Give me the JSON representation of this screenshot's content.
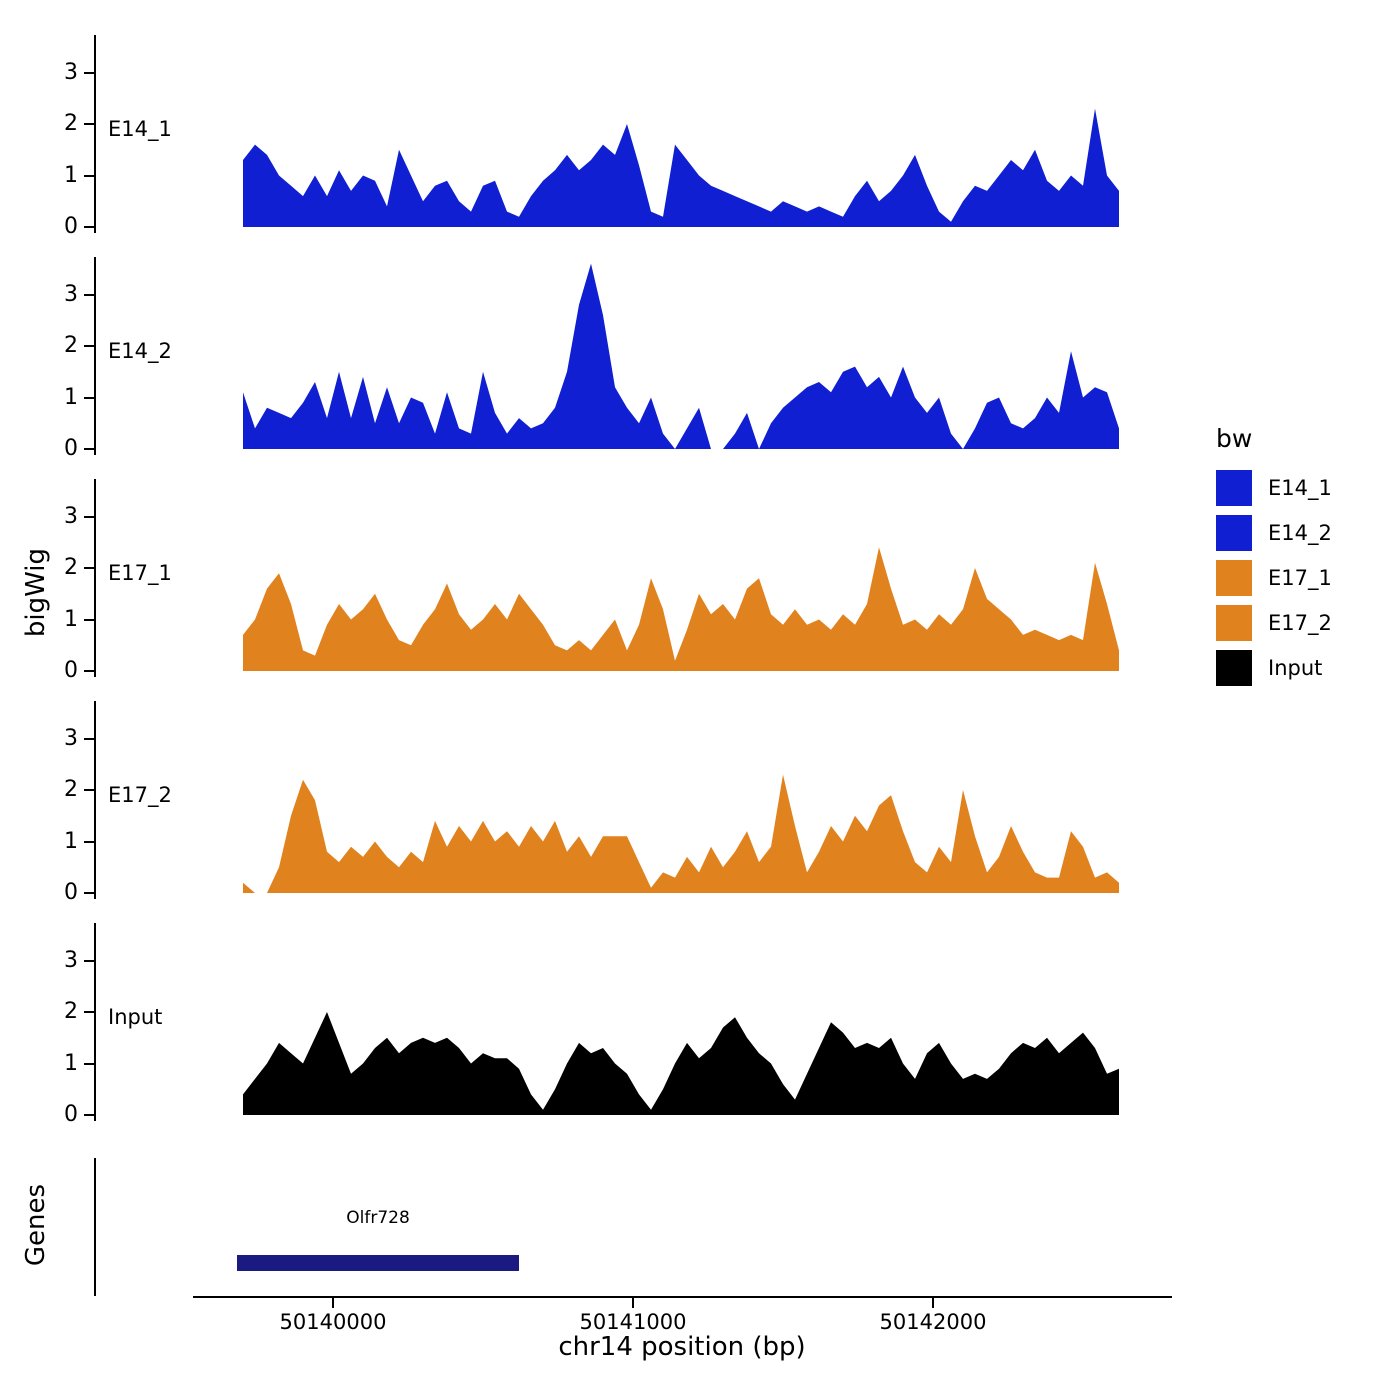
{
  "axes": {
    "y_title": "bigWig",
    "x_title": "chr14 position (bp)"
  },
  "genes": {
    "axis_title": "Genes",
    "gene": {
      "name": "Olfr728",
      "start": 50139680,
      "end": 50140620,
      "color": "#1A1A80"
    }
  },
  "legend": {
    "title": "bw",
    "entries": [
      {
        "label": "E14_1",
        "color": "#0F1FD1"
      },
      {
        "label": "E14_2",
        "color": "#0F1FD1"
      },
      {
        "label": "E17_1",
        "color": "#E0821E"
      },
      {
        "label": "E17_2",
        "color": "#E0821E"
      },
      {
        "label": "Input",
        "color": "#000000"
      }
    ]
  },
  "chart_data": {
    "type": "area",
    "title": "",
    "xlabel": "chr14 position (bp)",
    "ylabel": "bigWig",
    "x_start": 50139700,
    "x_step": 40,
    "x_end": 50142620,
    "x_ticks": [
      50140000,
      50141000,
      50142000
    ],
    "y_ticks": [
      0,
      1,
      2,
      3
    ],
    "ylim": [
      0,
      3.7
    ],
    "grid": false,
    "legend_position": "right",
    "tracks": [
      {
        "name": "E14_1",
        "color": "#0F1FD1",
        "values": [
          1.3,
          1.6,
          1.4,
          1.0,
          0.8,
          0.6,
          1.0,
          0.6,
          1.1,
          0.7,
          1.0,
          0.9,
          0.4,
          1.5,
          1.0,
          0.5,
          0.8,
          0.9,
          0.5,
          0.3,
          0.8,
          0.9,
          0.3,
          0.2,
          0.6,
          0.9,
          1.1,
          1.4,
          1.1,
          1.3,
          1.6,
          1.4,
          2.0,
          1.2,
          0.3,
          0.2,
          1.6,
          1.3,
          1.0,
          0.8,
          0.7,
          0.6,
          0.5,
          0.4,
          0.3,
          0.5,
          0.4,
          0.3,
          0.4,
          0.3,
          0.2,
          0.6,
          0.9,
          0.5,
          0.7,
          1.0,
          1.4,
          0.8,
          0.3,
          0.1,
          0.5,
          0.8,
          0.7,
          1.0,
          1.3,
          1.1,
          1.5,
          0.9,
          0.7,
          1.0,
          0.8,
          2.3,
          1.0,
          0.7
        ]
      },
      {
        "name": "E14_2",
        "color": "#0F1FD1",
        "values": [
          1.1,
          0.4,
          0.8,
          0.7,
          0.6,
          0.9,
          1.3,
          0.6,
          1.5,
          0.6,
          1.4,
          0.5,
          1.2,
          0.5,
          1.0,
          0.9,
          0.3,
          1.1,
          0.4,
          0.3,
          1.5,
          0.7,
          0.3,
          0.6,
          0.4,
          0.5,
          0.8,
          1.5,
          2.8,
          3.6,
          2.6,
          1.2,
          0.8,
          0.5,
          1.0,
          0.3,
          0.0,
          0.4,
          0.8,
          0.0,
          0.0,
          0.3,
          0.7,
          0.0,
          0.5,
          0.8,
          1.0,
          1.2,
          1.3,
          1.1,
          1.5,
          1.6,
          1.2,
          1.4,
          1.0,
          1.6,
          1.0,
          0.7,
          1.0,
          0.3,
          0.0,
          0.4,
          0.9,
          1.0,
          0.5,
          0.4,
          0.6,
          1.0,
          0.7,
          1.9,
          1.0,
          1.2,
          1.1,
          0.4
        ]
      },
      {
        "name": "E17_1",
        "color": "#E0821E",
        "values": [
          0.7,
          1.0,
          1.6,
          1.9,
          1.3,
          0.4,
          0.3,
          0.9,
          1.3,
          1.0,
          1.2,
          1.5,
          1.0,
          0.6,
          0.5,
          0.9,
          1.2,
          1.7,
          1.1,
          0.8,
          1.0,
          1.3,
          1.0,
          1.5,
          1.2,
          0.9,
          0.5,
          0.4,
          0.6,
          0.4,
          0.7,
          1.0,
          0.4,
          0.9,
          1.8,
          1.2,
          0.2,
          0.8,
          1.5,
          1.1,
          1.3,
          1.0,
          1.6,
          1.8,
          1.1,
          0.9,
          1.2,
          0.9,
          1.0,
          0.8,
          1.1,
          0.9,
          1.3,
          2.4,
          1.6,
          0.9,
          1.0,
          0.8,
          1.1,
          0.9,
          1.2,
          2.0,
          1.4,
          1.2,
          1.0,
          0.7,
          0.8,
          0.7,
          0.6,
          0.7,
          0.6,
          2.1,
          1.3,
          0.4
        ]
      },
      {
        "name": "E17_2",
        "color": "#E0821E",
        "values": [
          0.2,
          0.0,
          0.0,
          0.5,
          1.5,
          2.2,
          1.8,
          0.8,
          0.6,
          0.9,
          0.7,
          1.0,
          0.7,
          0.5,
          0.8,
          0.6,
          1.4,
          0.9,
          1.3,
          1.0,
          1.4,
          1.0,
          1.2,
          0.9,
          1.3,
          1.0,
          1.4,
          0.8,
          1.1,
          0.7,
          1.1,
          1.1,
          1.1,
          0.6,
          0.1,
          0.4,
          0.3,
          0.7,
          0.4,
          0.9,
          0.5,
          0.8,
          1.2,
          0.6,
          0.9,
          2.3,
          1.3,
          0.4,
          0.8,
          1.3,
          1.0,
          1.5,
          1.2,
          1.7,
          1.9,
          1.2,
          0.6,
          0.4,
          0.9,
          0.6,
          2.0,
          1.1,
          0.4,
          0.7,
          1.3,
          0.8,
          0.4,
          0.3,
          0.3,
          1.2,
          0.9,
          0.3,
          0.4,
          0.2
        ]
      },
      {
        "name": "Input",
        "color": "#000000",
        "values": [
          0.4,
          0.7,
          1.0,
          1.4,
          1.2,
          1.0,
          1.5,
          2.0,
          1.4,
          0.8,
          1.0,
          1.3,
          1.5,
          1.2,
          1.4,
          1.5,
          1.4,
          1.5,
          1.3,
          1.0,
          1.2,
          1.1,
          1.1,
          0.9,
          0.4,
          0.1,
          0.5,
          1.0,
          1.4,
          1.2,
          1.3,
          1.0,
          0.8,
          0.4,
          0.1,
          0.5,
          1.0,
          1.4,
          1.1,
          1.3,
          1.7,
          1.9,
          1.5,
          1.2,
          1.0,
          0.6,
          0.3,
          0.8,
          1.3,
          1.8,
          1.6,
          1.3,
          1.4,
          1.3,
          1.5,
          1.0,
          0.7,
          1.2,
          1.4,
          1.0,
          0.7,
          0.8,
          0.7,
          0.9,
          1.2,
          1.4,
          1.3,
          1.5,
          1.2,
          1.4,
          1.6,
          1.3,
          0.8,
          0.9
        ]
      }
    ]
  }
}
